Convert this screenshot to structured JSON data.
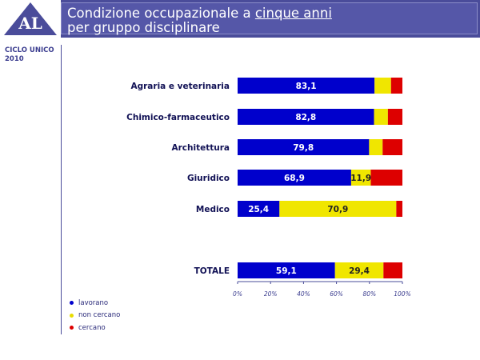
{
  "header": {
    "logo_text": "AL",
    "title_line1_prefix": "Condizione occupazionale a ",
    "title_line1_underlined": "cinque anni",
    "title_line2": "per gruppo disciplinare"
  },
  "sidebar": {
    "cycle_line1": "CICLO UNICO",
    "cycle_line2": "2010"
  },
  "colors": {
    "header_bg": "#4a4c9a",
    "lavorano": "#0000cc",
    "non_cercano": "#f0e600",
    "cercano": "#dd0000"
  },
  "chart_data": {
    "type": "bar",
    "orientation": "horizontal",
    "stacked": true,
    "categories": [
      "Agraria e veterinaria",
      "Chimico-farmaceutico",
      "Architettura",
      "Giuridico",
      "Medico",
      "TOTALE"
    ],
    "series": [
      {
        "name": "lavorano",
        "values": [
          83.1,
          82.8,
          79.8,
          68.9,
          25.4,
          59.1
        ],
        "labels": [
          "83,1",
          "82,8",
          "79,8",
          "68,9",
          "25,4",
          "59,1"
        ]
      },
      {
        "name": "non cercano",
        "values": [
          10.0,
          8.4,
          8.2,
          11.9,
          70.9,
          29.4
        ],
        "labels": [
          "",
          "",
          "",
          "11,9",
          "70,9",
          "29,4"
        ]
      },
      {
        "name": "cercano",
        "values": [
          6.9,
          8.8,
          12.0,
          19.2,
          3.7,
          11.5
        ],
        "labels": [
          "",
          "",
          "",
          "",
          "",
          ""
        ]
      }
    ],
    "xlim": [
      0,
      100
    ],
    "xticks": [
      "0%",
      "20%",
      "40%",
      "60%",
      "80%",
      "100%"
    ],
    "legend_position": "bottom-left",
    "grid": false
  }
}
